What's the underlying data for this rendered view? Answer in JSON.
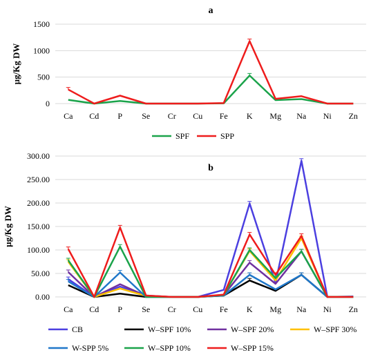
{
  "chart_data": [
    {
      "type": "line",
      "title": "a",
      "ylabel": "µg/Kg DW",
      "xlabel": "",
      "categories": [
        "Ca",
        "Cd",
        "P",
        "Se",
        "Cr",
        "Cu",
        "Fe",
        "K",
        "Mg",
        "Na",
        "Ni",
        "Zn"
      ],
      "ylim": [
        0,
        1500
      ],
      "yticks": [
        0,
        500,
        1000,
        1500
      ],
      "ytick_labels": [
        "0",
        "500",
        "1000",
        "1500"
      ],
      "grid": true,
      "legend": "bottom",
      "series": [
        {
          "name": "SPF",
          "color": "#1aa34a",
          "values": [
            70,
            0,
            50,
            0,
            0,
            0,
            5,
            530,
            65,
            85,
            0,
            0
          ]
        },
        {
          "name": "SPP",
          "color": "#ee1c1c",
          "values": [
            265,
            0,
            150,
            0,
            0,
            0,
            10,
            1180,
            90,
            140,
            0,
            0
          ]
        }
      ]
    },
    {
      "type": "line",
      "title": "b",
      "ylabel": "µg/Kg DW",
      "xlabel": "",
      "categories": [
        "Ca",
        "Cd",
        "P",
        "Se",
        "Cr",
        "Cu",
        "Fe",
        "K",
        "Mg",
        "Na",
        "Ni",
        "Zn"
      ],
      "ylim": [
        0,
        300
      ],
      "yticks": [
        0,
        50,
        100,
        150,
        200,
        250,
        300
      ],
      "ytick_labels": [
        "0.00",
        "50.00",
        "100.00",
        "150.00",
        "200.00",
        "250.00",
        "300.00"
      ],
      "grid": true,
      "legend": "bottom",
      "series": [
        {
          "name": "CB",
          "color": "#4b3fe0",
          "values": [
            38,
            0,
            22,
            3,
            0,
            0,
            15,
            199,
            30,
            290,
            0,
            1
          ]
        },
        {
          "name": "W–SPF 10%",
          "color": "#000000",
          "values": [
            25,
            0,
            7,
            0,
            0,
            0,
            3,
            35,
            13,
            47,
            0,
            0
          ]
        },
        {
          "name": "W–SPF 20%",
          "color": "#7030a0",
          "values": [
            53,
            0,
            27,
            2,
            0,
            0,
            4,
            73,
            28,
            97,
            0,
            0
          ]
        },
        {
          "name": "W–SPF 30%",
          "color": "#ffc000",
          "values": [
            75,
            0,
            18,
            2,
            0,
            0,
            4,
            98,
            35,
            125,
            0,
            0
          ]
        },
        {
          "name": "W-SPP 5%",
          "color": "#1f77c9",
          "values": [
            33,
            0,
            52,
            0,
            0,
            0,
            3,
            47,
            16,
            47,
            0,
            0
          ]
        },
        {
          "name": "W–SPP 10%",
          "color": "#1aa34a",
          "values": [
            78,
            0,
            107,
            0,
            0,
            0,
            4,
            100,
            40,
            97,
            0,
            0
          ]
        },
        {
          "name": "W–SPP 15%",
          "color": "#ee1c1c",
          "values": [
            102,
            0,
            148,
            3,
            0,
            0,
            5,
            133,
            47,
            130,
            0,
            0
          ]
        }
      ]
    }
  ]
}
